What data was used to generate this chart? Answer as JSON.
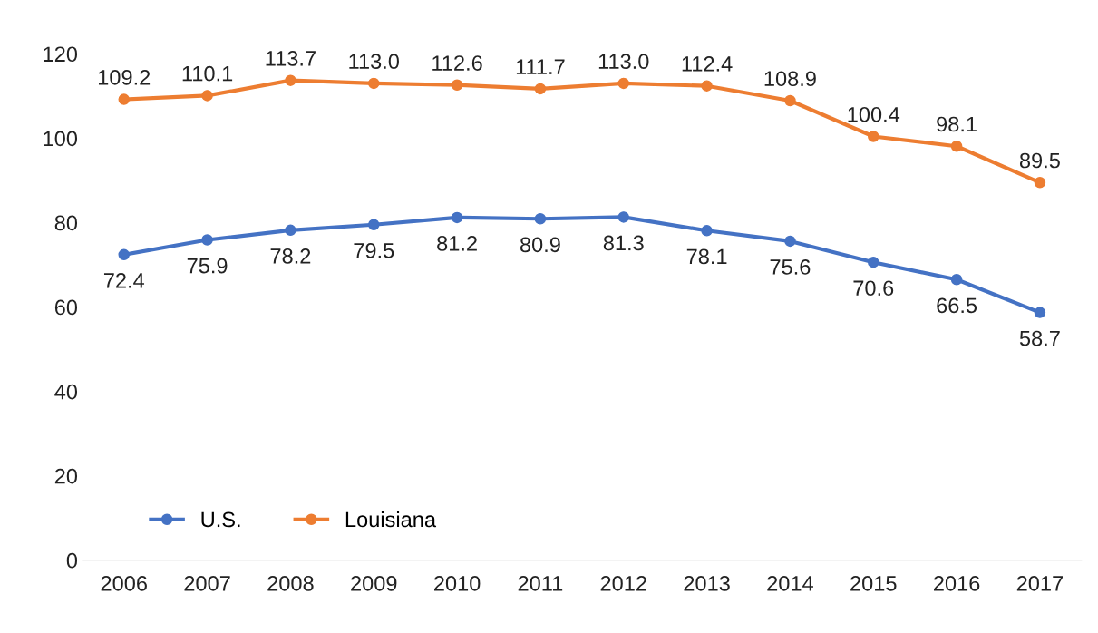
{
  "chart_data": {
    "type": "line",
    "categories": [
      "2006",
      "2007",
      "2008",
      "2009",
      "2010",
      "2011",
      "2012",
      "2013",
      "2014",
      "2015",
      "2016",
      "2017"
    ],
    "series": [
      {
        "name": "U.S.",
        "color": "#4472c4",
        "values": [
          72.4,
          75.9,
          78.2,
          79.5,
          81.2,
          80.9,
          81.3,
          78.1,
          75.6,
          70.6,
          66.5,
          58.7
        ],
        "value_labels": [
          "72.4",
          "75.9",
          "78.2",
          "79.5",
          "81.2",
          "80.9",
          "81.3",
          "78.1",
          "75.6",
          "70.6",
          "66.5",
          "58.7"
        ]
      },
      {
        "name": "Louisiana",
        "color": "#ed7d31",
        "values": [
          109.2,
          110.1,
          113.7,
          113.0,
          112.6,
          111.7,
          113.0,
          112.4,
          108.9,
          100.4,
          98.1,
          89.5
        ],
        "value_labels": [
          "109.2",
          "110.1",
          "113.7",
          "113.0",
          "112.6",
          "111.7",
          "113.0",
          "112.4",
          "108.9",
          "100.4",
          "98.1",
          "89.5"
        ]
      }
    ],
    "ylim": [
      0,
      120
    ],
    "yticks": [
      0,
      20,
      40,
      60,
      80,
      100,
      120
    ],
    "marker": "circle",
    "line_style": "solid",
    "grid": false,
    "legend": "bottom left"
  }
}
